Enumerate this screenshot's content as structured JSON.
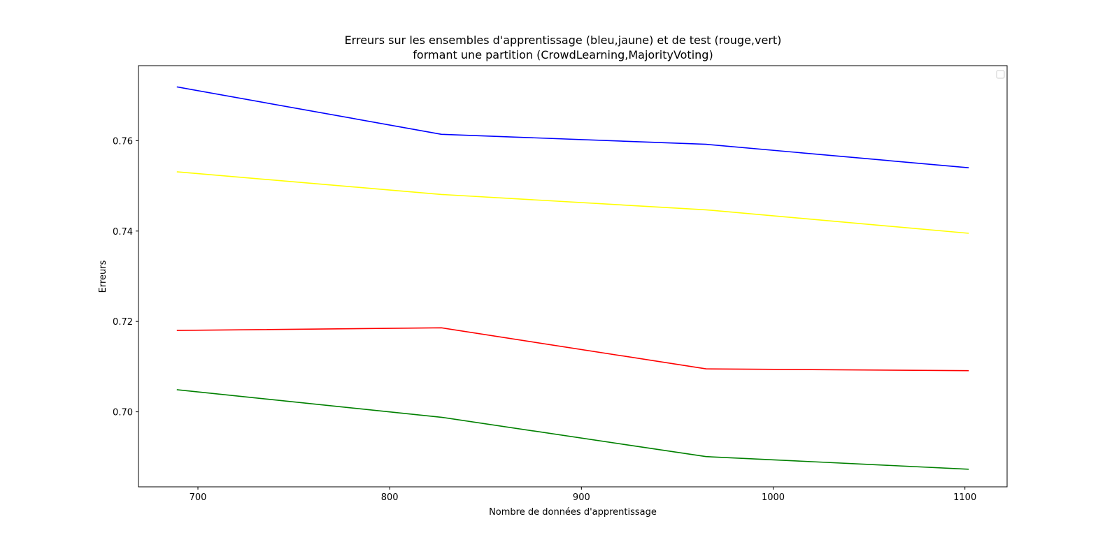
{
  "chart_data": {
    "type": "line",
    "title": [
      "Erreurs sur les ensembles d'apprentissage (bleu,jaune) et de test (rouge,vert)",
      "formant une partition (CrowdLearning,MajorityVoting)"
    ],
    "xlabel": "Nombre de données d'apprentissage",
    "ylabel": "Erreurs",
    "xlim": [
      669,
      1122
    ],
    "ylim": [
      0.6834,
      0.7766
    ],
    "x_ticks": [
      700,
      800,
      900,
      1000,
      1100
    ],
    "x_tick_labels": [
      "700",
      "800",
      "900",
      "1000",
      "1100"
    ],
    "y_ticks": [
      0.7,
      0.72,
      0.74,
      0.76
    ],
    "y_tick_labels": [
      "0.70",
      "0.72",
      "0.74",
      "0.76"
    ],
    "grid": false,
    "legend": "top-right (empty)",
    "x": [
      689,
      827,
      965,
      1102
    ],
    "series": [
      {
        "color": "#0000ff",
        "values": [
          0.7719,
          0.7614,
          0.7592,
          0.754
        ]
      },
      {
        "color": "#ffff00",
        "values": [
          0.7531,
          0.7481,
          0.7447,
          0.7395
        ]
      },
      {
        "color": "#ff0000",
        "values": [
          0.718,
          0.7186,
          0.7095,
          0.7091
        ]
      },
      {
        "color": "#008000",
        "values": [
          0.7049,
          0.6988,
          0.6901,
          0.6873
        ]
      }
    ]
  }
}
